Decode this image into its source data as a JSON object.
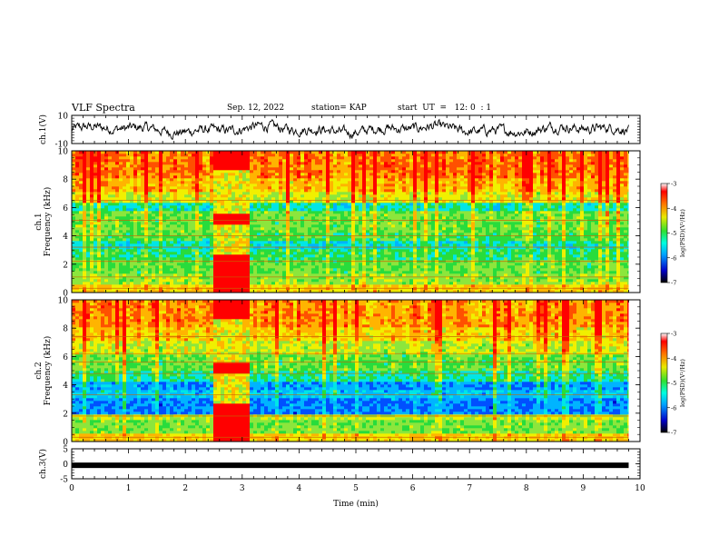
{
  "header": {
    "title": "VLF Spectra",
    "date": "Sep. 12, 2022",
    "station": "station= KAP",
    "start": "start  UT  =   12: 0  : 1"
  },
  "chart_data": [
    {
      "type": "line",
      "name": "ch1-waveform",
      "ylabel": "ch.1(V)",
      "ylim": [
        -10,
        10
      ],
      "yticks": [
        "10",
        "-10"
      ],
      "xlim": [
        0,
        10
      ],
      "x_end": 9.8,
      "note_values": "noisy waveform fluctuating roughly between -6 and +6 V"
    },
    {
      "type": "heatmap",
      "name": "ch1-spectrogram",
      "ylabel": "ch.1\nFrequency  (kHz)",
      "ylim": [
        0,
        10
      ],
      "yticks": [
        "0",
        "2",
        "4",
        "6",
        "8",
        "10"
      ],
      "xlim": [
        0,
        10
      ],
      "x_end": 9.8,
      "disturbance_interval": [
        2.45,
        3.1
      ],
      "colorbar": {
        "label": "log(PSD)(V²/Hz)",
        "range": [
          -7,
          -3
        ],
        "ticks": [
          "-3",
          "-4",
          "-5",
          "-6",
          "-7"
        ]
      }
    },
    {
      "type": "heatmap",
      "name": "ch2-spectrogram",
      "ylabel": "ch.2\nFrequency  (kHz)",
      "ylim": [
        0,
        10
      ],
      "yticks": [
        "0",
        "2",
        "4",
        "6",
        "8",
        "10"
      ],
      "xlim": [
        0,
        10
      ],
      "x_end": 9.8,
      "disturbance_interval": [
        2.45,
        3.1
      ],
      "colorbar": {
        "label": "log(PSD)(V²/Hz)",
        "range": [
          -7,
          -3
        ],
        "ticks": [
          "-3",
          "-4",
          "-5",
          "-6",
          "-7"
        ]
      }
    },
    {
      "type": "line",
      "name": "ch3-waveform",
      "ylabel": "ch.3(V)",
      "ylim": [
        -5,
        5
      ],
      "yticks": [
        "5",
        "0",
        "-5"
      ],
      "xlim": [
        0,
        10
      ],
      "x_end": 9.8,
      "value": -0.5
    }
  ],
  "xaxis": {
    "label": "Time  (min)",
    "ticks": [
      "0",
      "1",
      "2",
      "3",
      "4",
      "5",
      "6",
      "7",
      "8",
      "9",
      "10"
    ]
  },
  "colors": {
    "axis": "#000000",
    "trace": "#000000"
  }
}
